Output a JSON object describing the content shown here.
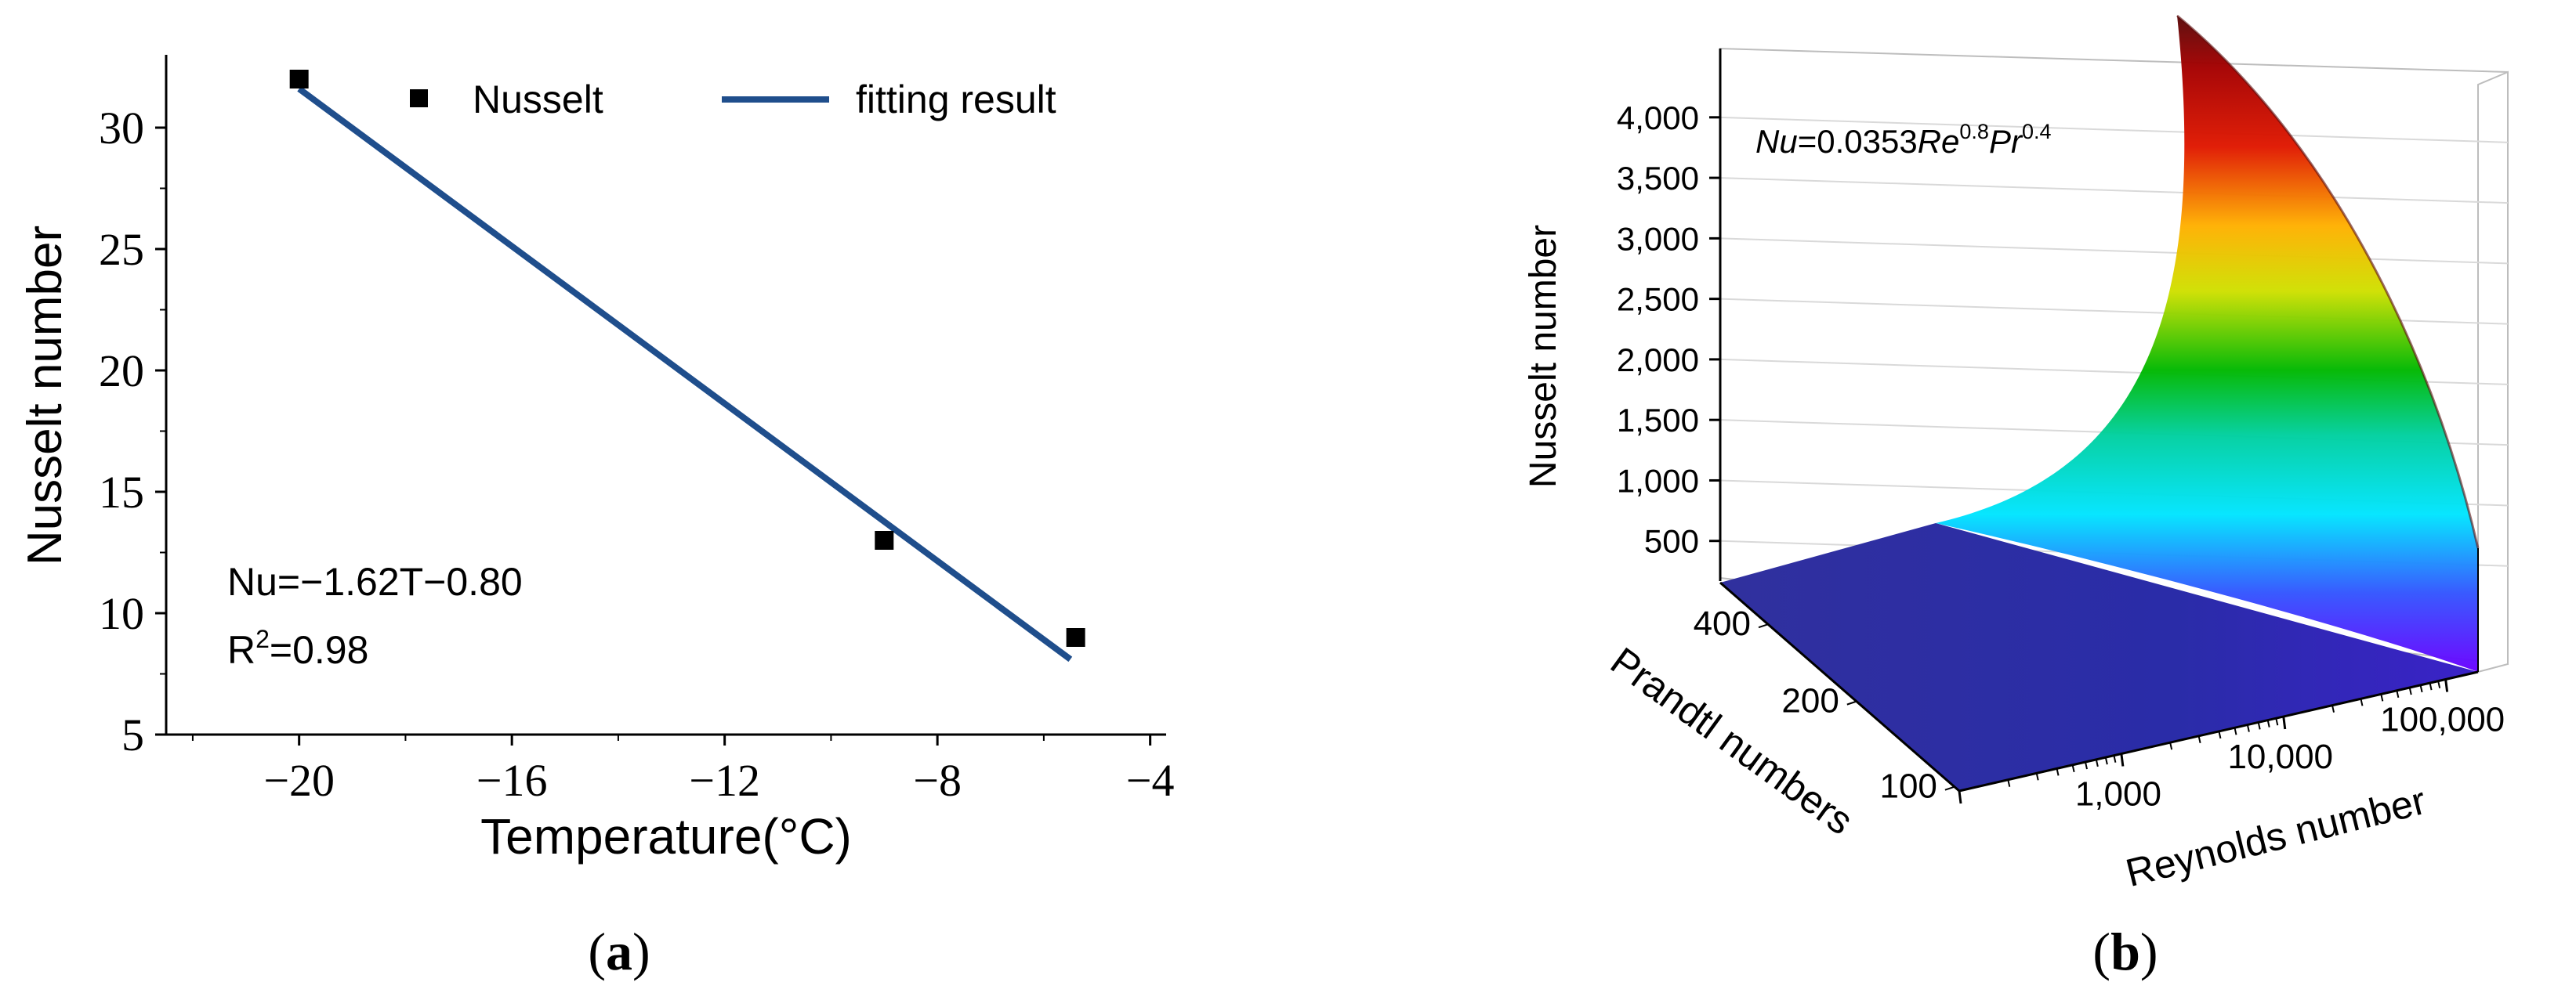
{
  "colors": {
    "fit_line": "#1f4e8c",
    "marker": "#000000",
    "axis": "#000000",
    "surface_base": "#2a2a9a",
    "grid": "#d9d9d9"
  },
  "chart_data": [
    {
      "type": "scatter",
      "panel_label_open": "(",
      "panel_label_letter": "a",
      "panel_label_close": ")",
      "xlabel": "Temperature(°C)",
      "ylabel": "Nusselt number",
      "xlim": [
        -22.5,
        -3.7
      ],
      "ylim": [
        5,
        33
      ],
      "xticks": [
        -20,
        -16,
        -12,
        -8,
        -4
      ],
      "xtick_labels": [
        "−20",
        "−16",
        "−12",
        "−8",
        "−4"
      ],
      "yticks": [
        5,
        10,
        15,
        20,
        25,
        30
      ],
      "ytick_labels": [
        "5",
        "10",
        "15",
        "20",
        "25",
        "30"
      ],
      "grid": false,
      "legend": {
        "placement": "top",
        "entries": [
          {
            "name": "Nusselt",
            "marker": "square"
          },
          {
            "name": "fitting result",
            "marker": "line"
          }
        ]
      },
      "series": [
        {
          "name": "Nusselt",
          "type": "scatter",
          "x": [
            -20.0,
            -9.0,
            -5.4
          ],
          "y": [
            32.0,
            13.0,
            9.0
          ]
        },
        {
          "name": "fitting result",
          "type": "line",
          "x": [
            -20.0,
            -5.5
          ],
          "y": [
            31.6,
            8.1
          ]
        }
      ],
      "annotation": {
        "equation": "Nu=−1.62T−0.80",
        "r2_prefix": "R",
        "r2_sup": "2",
        "r2_value": "=0.98"
      }
    },
    {
      "type": "surface3d",
      "panel_label_open": "(",
      "panel_label_letter": "b",
      "panel_label_close": ")",
      "xlabel": "Reynolds number",
      "ylabel": "Prandtl numbers",
      "zlabel": "Nusselt number",
      "x_scale": "log",
      "x_ticks": [
        1000,
        10000,
        100000
      ],
      "x_tick_labels": [
        "1,000",
        "10,000",
        "100,000"
      ],
      "y_ticks": [
        100,
        200,
        400
      ],
      "y_tick_labels": [
        "100",
        "200",
        "400"
      ],
      "z_ticks": [
        500,
        1000,
        1500,
        2000,
        2500,
        3000,
        3500,
        4000
      ],
      "z_tick_labels": [
        "500",
        "1,000",
        "1,500",
        "2,000",
        "2,500",
        "3,000",
        "3,500",
        "4,000"
      ],
      "zlim": [
        0,
        4400
      ],
      "colormap": "rainbow (blue-purple low, red high)",
      "formula_text": {
        "nu": "Nu",
        "eq": "=0.0353",
        "re": "Re",
        "re_exp": "0.8",
        "pr": "Pr",
        "pr_exp": "0.4"
      },
      "formula": "Nu = 0.0353 Re^0.8 Pr^0.4"
    }
  ]
}
